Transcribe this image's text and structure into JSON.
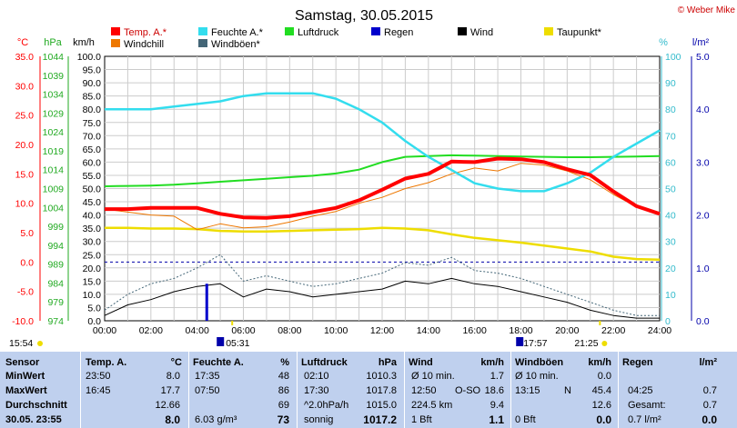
{
  "title": "Samstag, 30.05.2015",
  "copyright": "© Weber Mike",
  "legend": [
    {
      "label": "Temp. A.*",
      "color": "#ff0000"
    },
    {
      "label": "Feuchte A.*",
      "color": "#33ddee"
    },
    {
      "label": "Luftdruck",
      "color": "#22dd22"
    },
    {
      "label": "Regen",
      "color": "#0000cc"
    },
    {
      "label": "Wind",
      "color": "#000000"
    },
    {
      "label": "Taupunkt*",
      "color": "#eedd00"
    },
    {
      "label": "Windchill",
      "color": "#ee7700"
    },
    {
      "label": "Windböen*",
      "color": "#446677"
    }
  ],
  "axes": {
    "temp_unit": "°C",
    "hpa_unit": "hPa",
    "kmh_unit": "km/h",
    "pct_unit": "%",
    "rain_unit": "l/m²",
    "temp_ticks": [
      "35.0",
      "30.0",
      "25.0",
      "20.0",
      "15.0",
      "10.0",
      "5.0",
      "0.0",
      "-5.0",
      "-10.0"
    ],
    "hpa_ticks": [
      "1044",
      "1039",
      "1034",
      "1029",
      "1024",
      "1019",
      "1014",
      "1009",
      "1004",
      "999",
      "994",
      "989",
      "984",
      "979",
      "974"
    ],
    "kmh_ticks": [
      "100.0",
      "95.0",
      "90.0",
      "85.0",
      "80.0",
      "75.0",
      "70.0",
      "65.0",
      "60.0",
      "55.0",
      "50.0",
      "45.0",
      "40.0",
      "35.0",
      "30.0",
      "25.0",
      "20.0",
      "15.0",
      "10.0",
      "5.0",
      "0.0"
    ],
    "pct_ticks": [
      "100",
      "90",
      "80",
      "70",
      "60",
      "50",
      "40",
      "30",
      "20",
      "10",
      "0"
    ],
    "rain_ticks": [
      "5.0",
      "4.0",
      "3.0",
      "2.0",
      "1.0",
      "0.0"
    ],
    "time_ticks": [
      "00:00",
      "02:00",
      "04:00",
      "06:00",
      "08:00",
      "10:00",
      "12:00",
      "14:00",
      "16:00",
      "18:00",
      "20:00",
      "22:00",
      "24:00"
    ]
  },
  "sun_marks": {
    "left_time": "15:54",
    "sunrise": "05:31",
    "sunset": "21:25",
    "moon": "17:57"
  },
  "chart_data": {
    "type": "line",
    "title": "Samstag, 30.05.2015",
    "x": [
      "00:00",
      "01:00",
      "02:00",
      "03:00",
      "04:00",
      "05:00",
      "06:00",
      "07:00",
      "08:00",
      "09:00",
      "10:00",
      "11:00",
      "12:00",
      "13:00",
      "14:00",
      "15:00",
      "16:00",
      "17:00",
      "18:00",
      "19:00",
      "20:00",
      "21:00",
      "22:00",
      "23:00",
      "24:00"
    ],
    "xlim": [
      "00:00",
      "24:00"
    ],
    "ylim_kmh": [
      0,
      100
    ],
    "ylim_temp": [
      -10,
      35
    ],
    "ylim_hpa": [
      974,
      1044
    ],
    "ylim_pct": [
      0,
      100
    ],
    "ylim_rain": [
      0,
      5
    ],
    "series": [
      {
        "name": "Temp. A.*",
        "axis": "temp",
        "values": [
          9.0,
          9.0,
          9.2,
          9.2,
          9.2,
          8.2,
          7.6,
          7.5,
          7.8,
          8.5,
          9.2,
          10.5,
          12.3,
          14.2,
          15.0,
          17.1,
          17.0,
          17.6,
          17.5,
          17.0,
          15.8,
          14.8,
          12.0,
          9.5,
          8.2
        ]
      },
      {
        "name": "Feuchte A.*",
        "axis": "pct",
        "values": [
          80,
          80,
          80,
          81,
          82,
          83,
          85,
          86,
          86,
          86,
          84,
          80,
          75,
          68,
          62,
          57,
          52,
          50,
          49,
          49,
          52,
          56,
          62,
          67,
          72
        ]
      },
      {
        "name": "Luftdruck",
        "axis": "hpa",
        "values": [
          1009.6,
          1009.7,
          1009.8,
          1010.0,
          1010.4,
          1010.8,
          1011.2,
          1011.6,
          1012.0,
          1012.4,
          1013.0,
          1014.0,
          1016.0,
          1017.4,
          1017.6,
          1017.8,
          1017.7,
          1017.6,
          1017.5,
          1017.4,
          1017.3,
          1017.3,
          1017.4,
          1017.5,
          1017.6
        ]
      },
      {
        "name": "Taupunkt*",
        "axis": "temp",
        "values": [
          5.8,
          5.8,
          5.7,
          5.7,
          5.6,
          5.3,
          5.2,
          5.2,
          5.3,
          5.4,
          5.5,
          5.6,
          5.8,
          5.7,
          5.4,
          4.7,
          4.1,
          3.7,
          3.3,
          2.8,
          2.3,
          1.8,
          0.9,
          0.5,
          0.4
        ]
      },
      {
        "name": "Windchill",
        "axis": "temp",
        "values": [
          9.0,
          8.5,
          8.0,
          7.8,
          5.5,
          6.5,
          5.8,
          6.0,
          6.8,
          7.8,
          8.6,
          10.0,
          11.0,
          12.5,
          13.5,
          15.0,
          16.0,
          15.5,
          16.8,
          16.5,
          15.5,
          14.0,
          11.5,
          9.4,
          8.2
        ]
      },
      {
        "name": "Wind",
        "axis": "kmh",
        "values": [
          2,
          6,
          8,
          11,
          13,
          14,
          9,
          12,
          11,
          9,
          10,
          11,
          12,
          15,
          14,
          16,
          14,
          13,
          11,
          9,
          7,
          4,
          2,
          1,
          1
        ]
      },
      {
        "name": "Windböen*",
        "axis": "kmh",
        "values": [
          4,
          10,
          14,
          16,
          20,
          25,
          15,
          17,
          15,
          13,
          14,
          16,
          18,
          22,
          21,
          24,
          19,
          18,
          16,
          13,
          10,
          7,
          4,
          2,
          2
        ]
      }
    ],
    "rain_bars": [
      {
        "time": "04:25",
        "value": 0.7
      }
    ]
  },
  "table": {
    "headers": {
      "sensor": "Sensor",
      "temp": "Temp. A.",
      "temp_unit": "°C",
      "feuchte": "Feuchte A.",
      "feuchte_unit": "%",
      "druck": "Luftdruck",
      "druck_unit": "hPa",
      "wind": "Wind",
      "wind_unit": "km/h",
      "boen": "Windböen",
      "boen_unit": "km/h",
      "regen": "Regen",
      "regen_unit": "l/m²"
    },
    "rows": [
      {
        "label": "MinWert",
        "temp_t": "23:50",
        "temp_v": "8.0",
        "feu_t": "17:35",
        "feu_v": "48",
        "dru_t": "02:10",
        "dru_v": "1010.3",
        "wind_t": "Ø 10 min.",
        "wind_v": "1.7",
        "boen_t": "Ø 10 min.",
        "boen_v": "0.0",
        "regen_t": "",
        "regen_v": ""
      },
      {
        "label": "MaxWert",
        "temp_t": "16:45",
        "temp_v": "17.7",
        "feu_t": "07:50",
        "feu_v": "86",
        "dru_t": "17:30",
        "dru_v": "1017.8",
        "wind_t": "12:50",
        "wind_m": "O-SO",
        "wind_v": "18.6",
        "boen_t": "13:15",
        "boen_m": "N",
        "boen_v": "45.4",
        "regen_t": "04:25",
        "regen_v": "0.7"
      },
      {
        "label": "Durchschnitt",
        "temp_t": "",
        "temp_v": "12.66",
        "feu_t": "",
        "feu_v": "69",
        "dru_t": "^2.0hPa/h",
        "dru_v": "1015.0",
        "wind_t": "224.5 km",
        "wind_v": "9.4",
        "boen_t": "",
        "boen_v": "12.6",
        "regen_t": "Gesamt:",
        "regen_v": "0.7"
      },
      {
        "label": "30.05. 23:55",
        "temp_t": "",
        "temp_v": "8.0",
        "feu_t": "6.03 g/m³",
        "feu_v": "73",
        "dru_t": "sonnig",
        "dru_v": "1017.2",
        "wind_t": "1 Bft",
        "wind_v": "1.1",
        "boen_t": "0 Bft",
        "boen_v": "0.0",
        "regen_t": "0.7 l/m²",
        "regen_v": "0.0"
      }
    ]
  }
}
